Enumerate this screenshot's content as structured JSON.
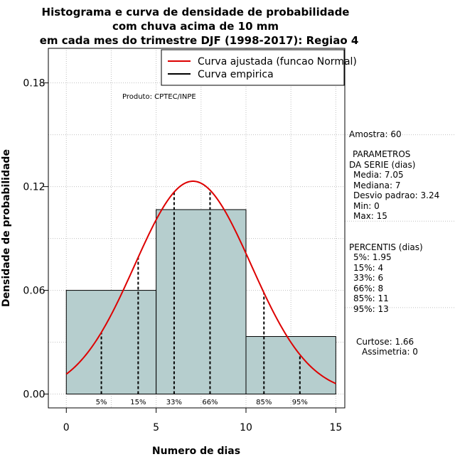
{
  "chart_data": {
    "type": "bar",
    "title_lines": [
      "Histograma e curva de densidade de probabilidade",
      "com chuva acima de 10 mm",
      "em cada mes do trimestre DJF (1998-2017): Regiao 4"
    ],
    "xlabel": "Numero de dias",
    "ylabel": "Densidade de probabilidade",
    "xlim": [
      -1,
      15.5
    ],
    "ylim": [
      -0.008,
      0.2
    ],
    "x_ticks": [
      0,
      5,
      10,
      15
    ],
    "y_ticks": [
      0.0,
      0.06,
      0.12,
      0.18
    ],
    "y_tick_labels": [
      "0.00",
      "0.06",
      "0.12",
      "0.18"
    ],
    "bins": [
      {
        "from": 0,
        "to": 5,
        "density": 0.06
      },
      {
        "from": 5,
        "to": 10,
        "density": 0.1067
      },
      {
        "from": 10,
        "to": 15,
        "density": 0.0333
      }
    ],
    "normal_fit": {
      "mean": 7.05,
      "sd": 3.24,
      "x_from": 0,
      "x_to": 15
    },
    "percentiles": [
      {
        "label": "5%",
        "x": 1.95
      },
      {
        "label": "15%",
        "x": 4
      },
      {
        "label": "33%",
        "x": 6
      },
      {
        "label": "66%",
        "x": 8
      },
      {
        "label": "85%",
        "x": 11
      },
      {
        "label": "95%",
        "x": 13
      }
    ],
    "legend": [
      {
        "label": "Curva ajustada (funcao Normal)",
        "color": "#dd0000"
      },
      {
        "label": "Curva empirica",
        "color": "#000000"
      }
    ],
    "product_note": "Produto: CPTEC/INPE",
    "colors": {
      "bar_fill": "#b6cece",
      "curve": "#dd0000",
      "grid": "#c0c0c0"
    }
  },
  "side_panel": {
    "sample": "Amostra: 60",
    "params_title_1": "PARAMETROS",
    "params_title_2": "DA SERIE (dias)",
    "params": [
      "Media: 7.05",
      "Mediana: 7",
      "Desvio padrao: 3.24",
      "Min: 0",
      "Max: 15"
    ],
    "percentis_title": "PERCENTIS (dias)",
    "percentis": [
      "5%: 1.95",
      "15%: 4",
      "33%: 6",
      "66%: 8",
      "85%: 11",
      "95%: 13"
    ],
    "kurtosis": "Curtose: 1.66",
    "skewness": "Assimetria: 0"
  }
}
